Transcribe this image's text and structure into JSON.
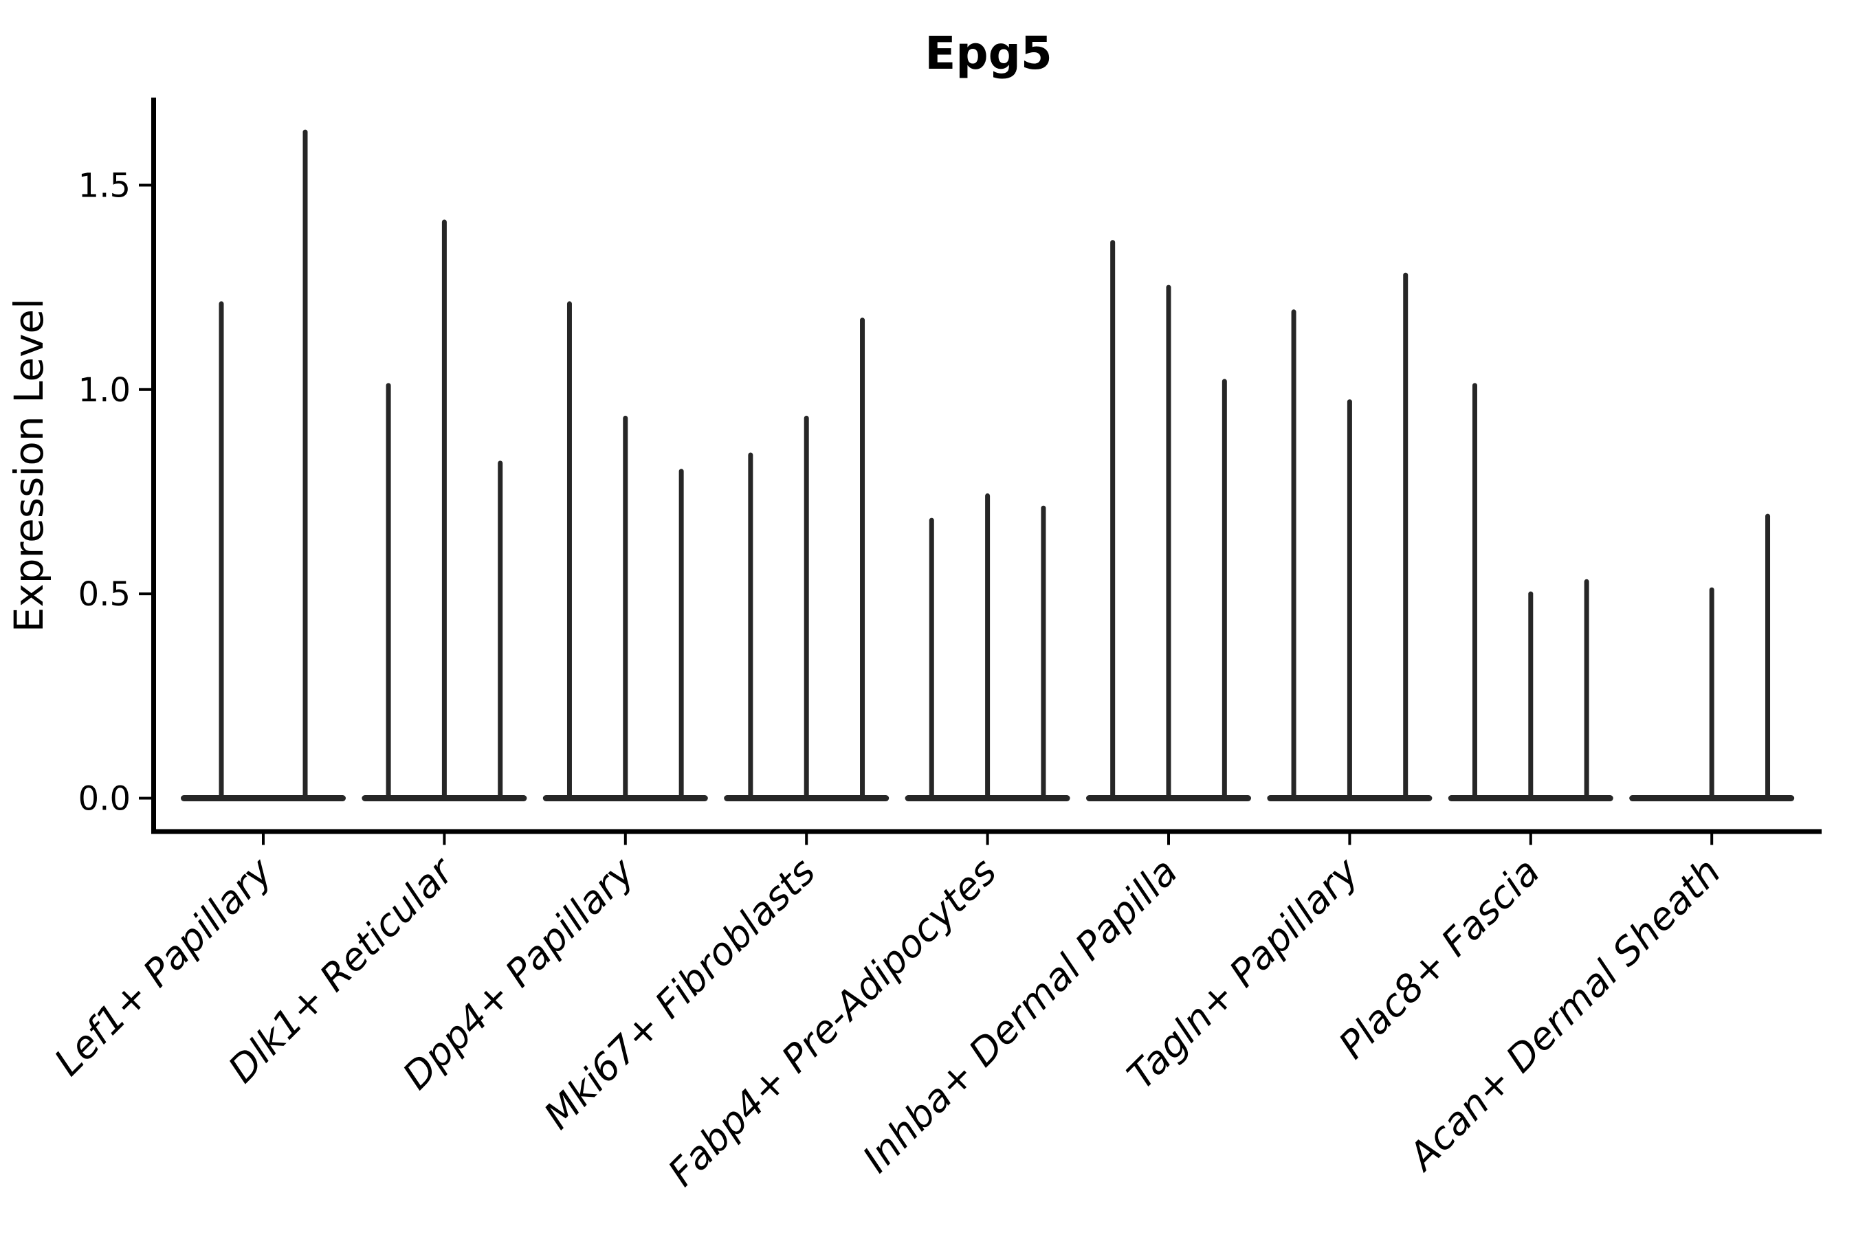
{
  "chart_data": {
    "type": "violin",
    "title": "Epg5",
    "ylabel": "Expression Level",
    "xlabel": "",
    "yticks": [
      0.0,
      0.5,
      1.0,
      1.5
    ],
    "ylim": [
      -0.09,
      1.72
    ],
    "grid": false,
    "legend": "none",
    "style_note": "Seurat-style split violin plot; each category slot holds narrow violins rendered as a flat baseline blob at 0 with a thin spike up to the max expression value; 0 means a flat violin with no spike",
    "categories": [
      "Lef1+ Papillary",
      "Dlk1+ Reticular",
      "Dpp4+ Papillary",
      "Mki67+ Fibroblasts",
      "Fabp4+ Pre-Adipocytes",
      "Inhba+ Dermal Papilla",
      "Tagln+ Papillary",
      "Plac8+ Fascia",
      "Acan+ Dermal Sheath"
    ],
    "groups": [
      {
        "label": "Lef1+ Papillary",
        "violin_max": [
          1.21,
          1.63
        ]
      },
      {
        "label": "Dlk1+ Reticular",
        "violin_max": [
          1.01,
          1.41,
          0.82
        ]
      },
      {
        "label": "Dpp4+ Papillary",
        "violin_max": [
          1.21,
          0.93,
          0.8
        ]
      },
      {
        "label": "Mki67+ Fibroblasts",
        "violin_max": [
          0.84,
          0.93,
          1.17
        ]
      },
      {
        "label": "Fabp4+ Pre-Adipocytes",
        "violin_max": [
          0.68,
          0.74,
          0.71
        ]
      },
      {
        "label": "Inhba+ Dermal Papilla",
        "violin_max": [
          1.36,
          1.25,
          1.02
        ]
      },
      {
        "label": "Tagln+ Papillary",
        "violin_max": [
          1.19,
          0.97,
          1.28
        ]
      },
      {
        "label": "Plac8+ Fascia",
        "violin_max": [
          1.01,
          0.5,
          0.53
        ]
      },
      {
        "label": "Acan+ Dermal Sheath",
        "violin_max": [
          0,
          0.51,
          0.69
        ]
      }
    ],
    "colors": {
      "violin": "#262626",
      "axis": "#000000",
      "text": "#000000",
      "background": "#ffffff"
    }
  }
}
